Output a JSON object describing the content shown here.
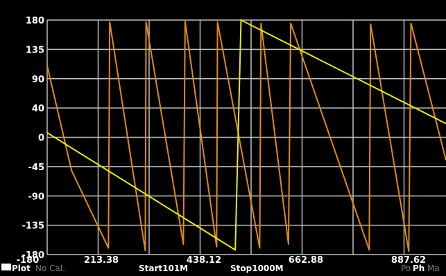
{
  "chart_data": {
    "type": "line",
    "xlim": [
      101,
      1000
    ],
    "ylim": [
      -180,
      180
    ],
    "y_ticks": [
      "180",
      "135",
      "90",
      "40",
      "0",
      "-45",
      "-90",
      "-135",
      "-180"
    ],
    "x_ticks": [
      "213.38",
      "438.12",
      "662.88",
      "887.62"
    ],
    "grid": true,
    "series": [
      {
        "color": "#e08c10",
        "x": [
          101,
          156,
          239,
          242,
          322,
          324,
          408,
          412,
          483,
          485,
          580,
          583,
          645,
          650,
          827,
          830,
          916,
          921,
          1000
        ],
        "y": [
          110,
          -51,
          -170,
          177,
          -174,
          177,
          -164,
          178,
          -168,
          177,
          -170,
          175,
          -164,
          175,
          -173,
          174,
          -175,
          175,
          -35
        ]
      },
      {
        "color": "#e8e820",
        "x": [
          101,
          525,
          538,
          1000
        ],
        "y": [
          7,
          -173,
          180,
          21
        ]
      }
    ]
  },
  "status": {
    "plot": "Plot",
    "cal": "No Cal.",
    "start": "Start101M",
    "stop": "Stop1000M",
    "format_prefix": "Po",
    "format": "Ph",
    "marker": "Ma"
  },
  "colors": {
    "background": "#000000",
    "grid": "#bfbfbf",
    "trace1": "#e08c10",
    "trace2": "#e8e820"
  }
}
